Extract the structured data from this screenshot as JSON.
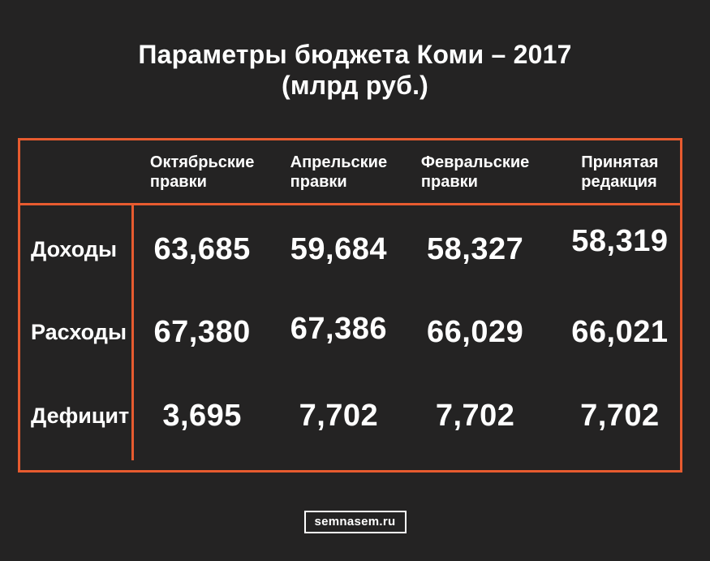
{
  "title": {
    "line1": "Параметры бюджета Коми – 2017",
    "line2": "(млрд руб.)"
  },
  "table": {
    "column_headers": [
      {
        "line1": "Октябрьские",
        "line2": "правки"
      },
      {
        "line1": "Апрельские",
        "line2": "правки"
      },
      {
        "line1": "Февральские",
        "line2": "правки"
      },
      {
        "line1": "Принятая",
        "line2": "редакция"
      }
    ],
    "rows": [
      {
        "label": "Доходы",
        "values": [
          "63,685",
          "59,684",
          "58,327",
          "58,319"
        ]
      },
      {
        "label": "Расходы",
        "values": [
          "67,380",
          "67,386",
          "66,029",
          "66,021"
        ]
      },
      {
        "label": "Дефицит",
        "values": [
          "3,695",
          "7,702",
          "7,702",
          "7,702"
        ]
      }
    ]
  },
  "footer": {
    "source": "semnasem.ru"
  },
  "colors": {
    "background": "#242323",
    "accent_orange": "#e75b2f",
    "text": "#ffffff"
  },
  "chart_data": {
    "type": "table",
    "title": "Параметры бюджета Коми – 2017 (млрд руб.)",
    "categories": [
      "Октябрьские правки",
      "Апрельские правки",
      "Февральские правки",
      "Принятая редакция"
    ],
    "series": [
      {
        "name": "Доходы",
        "values": [
          63.685,
          59.684,
          58.327,
          58.319
        ]
      },
      {
        "name": "Расходы",
        "values": [
          67.38,
          67.386,
          66.029,
          66.021
        ]
      },
      {
        "name": "Дефицит",
        "values": [
          3.695,
          7.702,
          7.702,
          7.702
        ]
      }
    ],
    "units": "млрд руб.",
    "source": "semnasem.ru"
  }
}
